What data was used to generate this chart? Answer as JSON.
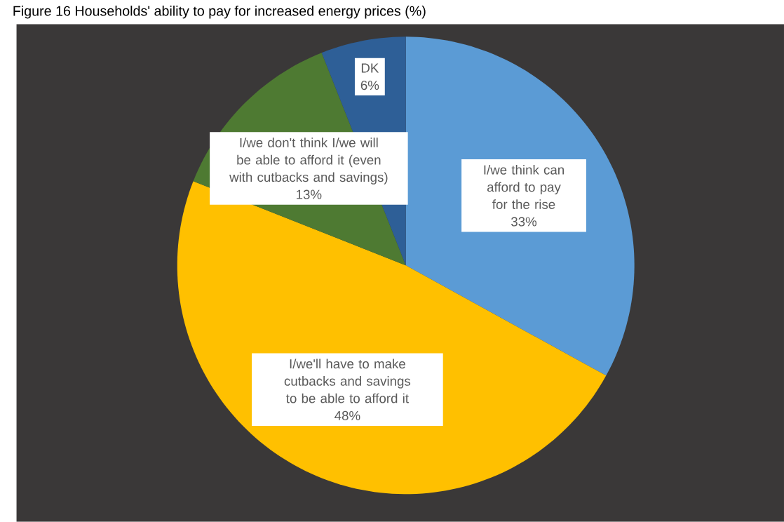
{
  "chart_data": {
    "type": "pie",
    "title": "Figure 16 Households' ability to pay for increased energy prices (%)",
    "categories": [
      "I/we think can afford to pay for the rise",
      "I/we'll have to make cutbacks and savings to be able to afford it",
      "I/we don't think I/we will be able to afford it (even with cutbacks and savings)",
      "DK"
    ],
    "values": [
      33,
      48,
      13,
      6
    ],
    "value_labels": [
      "33%",
      "48%",
      "13%",
      "6%"
    ],
    "colors": [
      "#5b9bd5",
      "#ffc000",
      "#4e7a32",
      "#2e5f97"
    ]
  }
}
